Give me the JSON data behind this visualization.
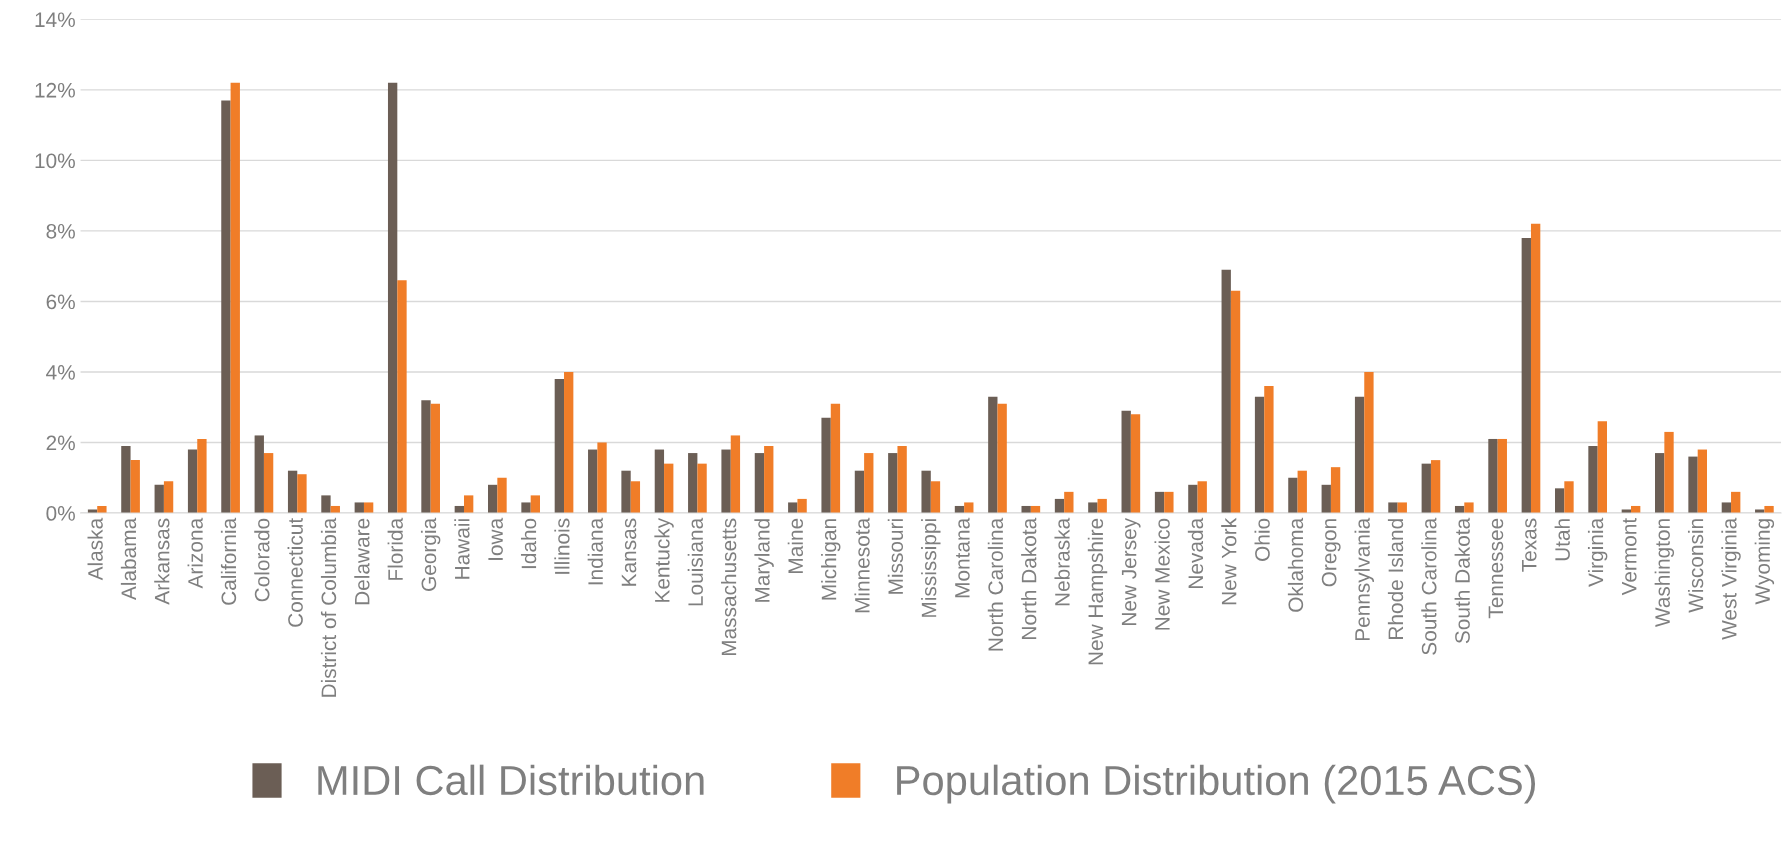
{
  "chart_data": {
    "type": "bar",
    "categories": [
      "Alaska",
      "Alabama",
      "Arkansas",
      "Arizona",
      "California",
      "Colorado",
      "Connecticut",
      "District of Columbia",
      "Delaware",
      "Florida",
      "Georgia",
      "Hawaii",
      "Iowa",
      "Idaho",
      "Illinois",
      "Indiana",
      "Kansas",
      "Kentucky",
      "Louisiana",
      "Massachusetts",
      "Maryland",
      "Maine",
      "Michigan",
      "Minnesota",
      "Missouri",
      "Mississippi",
      "Montana",
      "North Carolina",
      "North Dakota",
      "Nebraska",
      "New Hampshire",
      "New Jersey",
      "New Mexico",
      "Nevada",
      "New York",
      "Ohio",
      "Oklahoma",
      "Oregon",
      "Pennsylvania",
      "Rhode Island",
      "South Carolina",
      "South Dakota",
      "Tennessee",
      "Texas",
      "Utah",
      "Virginia",
      "Vermont",
      "Washington",
      "Wisconsin",
      "West Virginia",
      "Wyoming"
    ],
    "series": [
      {
        "name": "MIDI Call Distribution",
        "color": "#6b5e55",
        "values": [
          0.1,
          1.9,
          0.8,
          1.8,
          11.7,
          2.2,
          1.2,
          0.5,
          0.3,
          12.2,
          3.2,
          0.2,
          0.8,
          0.3,
          3.8,
          1.8,
          1.2,
          1.8,
          1.7,
          1.8,
          1.7,
          0.3,
          2.7,
          1.2,
          1.7,
          1.2,
          0.2,
          3.3,
          0.2,
          0.4,
          0.3,
          2.9,
          0.6,
          0.8,
          6.9,
          3.3,
          1.0,
          0.8,
          3.3,
          0.3,
          1.4,
          0.2,
          2.1,
          7.8,
          0.7,
          1.9,
          0.1,
          1.7,
          1.6,
          0.3,
          0.1
        ]
      },
      {
        "name": "Population Distribution (2015 ACS)",
        "color": "#f07d28",
        "values": [
          0.2,
          1.5,
          0.9,
          2.1,
          12.2,
          1.7,
          1.1,
          0.2,
          0.3,
          6.6,
          3.1,
          0.5,
          1.0,
          0.5,
          4.0,
          2.0,
          0.9,
          1.4,
          1.4,
          2.2,
          1.9,
          0.4,
          3.1,
          1.7,
          1.9,
          0.9,
          0.3,
          3.1,
          0.2,
          0.6,
          0.4,
          2.8,
          0.6,
          0.9,
          6.3,
          3.6,
          1.2,
          1.3,
          4.0,
          0.3,
          1.5,
          0.3,
          2.1,
          8.2,
          0.9,
          2.6,
          0.2,
          2.3,
          1.8,
          0.6,
          0.2
        ]
      }
    ],
    "ylim": [
      0,
      14
    ],
    "yticks": [
      {
        "value": 0,
        "label": "0%"
      },
      {
        "value": 2,
        "label": "2%"
      },
      {
        "value": 4,
        "label": "4%"
      },
      {
        "value": 6,
        "label": "6%"
      },
      {
        "value": 8,
        "label": "8%"
      },
      {
        "value": 10,
        "label": "10%"
      },
      {
        "value": 12,
        "label": "12%"
      },
      {
        "value": 14,
        "label": "14%"
      }
    ],
    "grid": "y",
    "legend": "bottom"
  }
}
